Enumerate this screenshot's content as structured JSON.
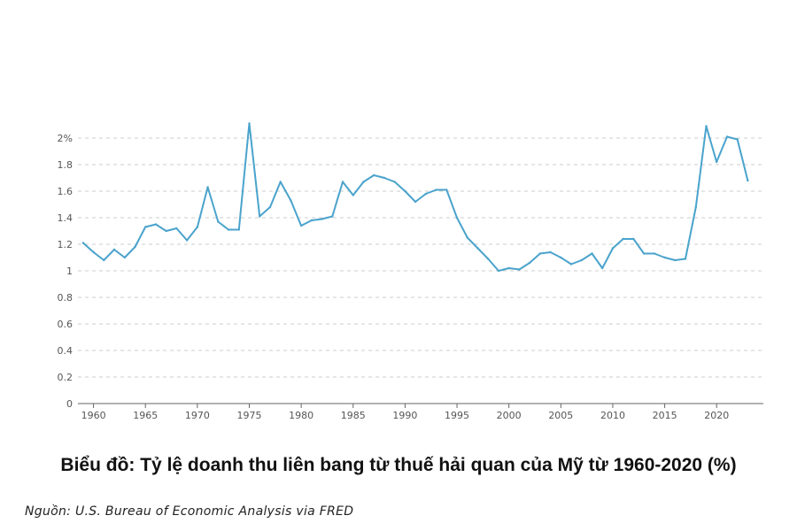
{
  "chart_data": {
    "type": "line",
    "title": "Biểu đồ: Tỷ lệ doanh thu liên bang từ thuế hải quan của Mỹ từ 1960-2020 (%)",
    "source": "Nguồn: U.S. Bureau of Economic Analysis via FRED",
    "xlabel": "",
    "ylabel": "",
    "xlim": [
      1958.5,
      2024.5
    ],
    "ylim": [
      0,
      2.1
    ],
    "grid": true,
    "x_ticks": [
      1960,
      1965,
      1970,
      1975,
      1980,
      1985,
      1990,
      1995,
      2000,
      2005,
      2010,
      2015,
      2020
    ],
    "y_ticks": [
      {
        "value": 0,
        "label": "0"
      },
      {
        "value": 0.2,
        "label": "0.2"
      },
      {
        "value": 0.4,
        "label": "0.4"
      },
      {
        "value": 0.6,
        "label": "0.6"
      },
      {
        "value": 0.8,
        "label": "0.8"
      },
      {
        "value": 1,
        "label": "1"
      },
      {
        "value": 1.2,
        "label": "1.2"
      },
      {
        "value": 1.4,
        "label": "1.4"
      },
      {
        "value": 1.6,
        "label": "1.6"
      },
      {
        "value": 1.8,
        "label": "1.8"
      },
      {
        "value": 2,
        "label": "2%"
      }
    ],
    "line_color": "#4aa3cc",
    "series": [
      {
        "x": [
          1959,
          1960,
          1961,
          1962,
          1963,
          1964,
          1965,
          1966,
          1967,
          1968,
          1969,
          1970,
          1971,
          1972,
          1973,
          1974,
          1975,
          1976,
          1977,
          1978,
          1979,
          1980,
          1981,
          1982,
          1983,
          1984,
          1985,
          1986,
          1987,
          1988,
          1989,
          1990,
          1991,
          1992,
          1993,
          1994,
          1995,
          1996,
          1997,
          1998,
          1999,
          2000,
          2001,
          2002,
          2003,
          2004,
          2005,
          2006,
          2007,
          2008,
          2009,
          2010,
          2011,
          2012,
          2013,
          2014,
          2015,
          2016,
          2017,
          2018,
          2019,
          2020,
          2021,
          2022,
          2023
        ],
        "values": [
          1.21,
          1.14,
          1.08,
          1.16,
          1.1,
          1.18,
          1.33,
          1.35,
          1.3,
          1.32,
          1.23,
          1.33,
          1.63,
          1.37,
          1.31,
          1.31,
          2.11,
          1.41,
          1.48,
          1.67,
          1.53,
          1.34,
          1.38,
          1.39,
          1.41,
          1.67,
          1.57,
          1.67,
          1.72,
          1.7,
          1.67,
          1.6,
          1.52,
          1.58,
          1.61,
          1.61,
          1.4,
          1.25,
          1.17,
          1.09,
          1.0,
          1.02,
          1.01,
          1.06,
          1.13,
          1.14,
          1.1,
          1.05,
          1.08,
          1.13,
          1.02,
          1.17,
          1.24,
          1.24,
          1.13,
          1.13,
          1.1,
          1.08,
          1.09,
          1.48,
          2.09,
          1.82,
          2.01,
          1.99,
          1.68
        ]
      }
    ]
  }
}
